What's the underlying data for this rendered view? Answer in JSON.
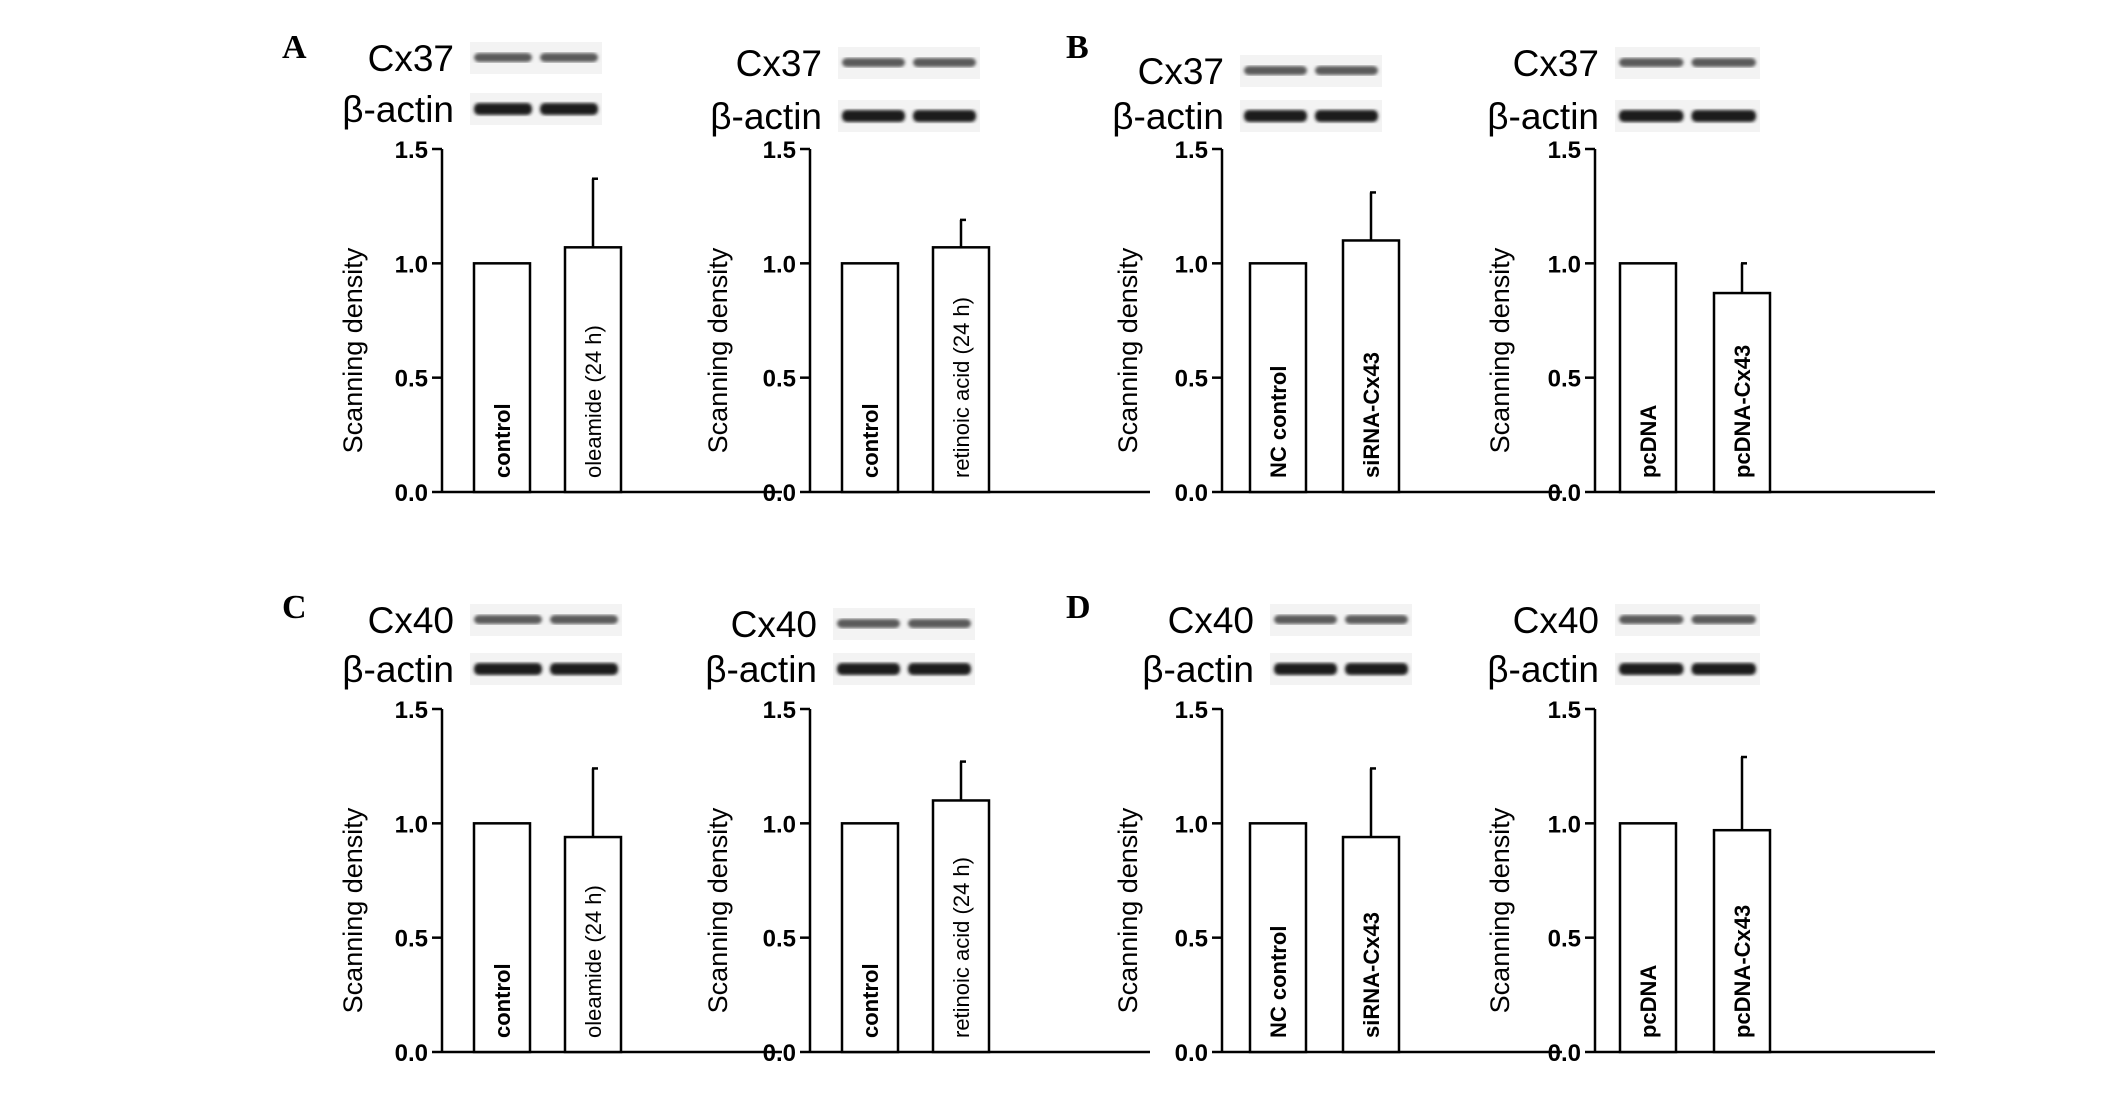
{
  "figure": {
    "panel_letters": [
      "A",
      "B",
      "C",
      "D"
    ]
  },
  "chart_data": [
    {
      "type": "bar",
      "panel": "A",
      "protein": "Cx37",
      "loading_control": "β-actin",
      "categories": [
        "control",
        "oleamide (24 h)"
      ],
      "values": [
        1.0,
        1.07
      ],
      "errors": [
        0,
        0.3
      ],
      "ylabel": "Scanning density",
      "ylim": [
        0,
        1.5
      ],
      "yticks": [
        "0.0",
        "0.5",
        "1.0",
        "1.5"
      ],
      "bold_bar_labels": [
        true,
        false
      ]
    },
    {
      "type": "bar",
      "panel": "A",
      "protein": "Cx37",
      "loading_control": "β-actin",
      "categories": [
        "control",
        "retinoic acid (24 h)"
      ],
      "values": [
        1.0,
        1.07
      ],
      "errors": [
        0,
        0.12
      ],
      "ylabel": "Scanning density",
      "ylim": [
        0,
        1.5
      ],
      "yticks": [
        "0.0",
        "0.5",
        "1.0",
        "1.5"
      ],
      "bold_bar_labels": [
        true,
        false
      ]
    },
    {
      "type": "bar",
      "panel": "B",
      "protein": "Cx37",
      "loading_control": "β-actin",
      "categories": [
        "NC control",
        "siRNA-Cx43"
      ],
      "values": [
        1.0,
        1.1
      ],
      "errors": [
        0,
        0.21
      ],
      "ylabel": "Scanning density",
      "ylim": [
        0,
        1.5
      ],
      "yticks": [
        "0.0",
        "0.5",
        "1.0",
        "1.5"
      ],
      "bold_bar_labels": [
        true,
        true
      ]
    },
    {
      "type": "bar",
      "panel": "B",
      "protein": "Cx37",
      "loading_control": "β-actin",
      "categories": [
        "pcDNA",
        "pcDNA-Cx43"
      ],
      "values": [
        1.0,
        0.87
      ],
      "errors": [
        0,
        0.13
      ],
      "ylabel": "Scanning density",
      "ylim": [
        0,
        1.5
      ],
      "yticks": [
        "0.0",
        "0.5",
        "1.0",
        "1.5"
      ],
      "bold_bar_labels": [
        true,
        true
      ]
    },
    {
      "type": "bar",
      "panel": "C",
      "protein": "Cx40",
      "loading_control": "β-actin",
      "categories": [
        "control",
        "oleamide (24 h)"
      ],
      "values": [
        1.0,
        0.94
      ],
      "errors": [
        0,
        0.3
      ],
      "ylabel": "Scanning density",
      "ylim": [
        0,
        1.5
      ],
      "yticks": [
        "0.0",
        "0.5",
        "1.0",
        "1.5"
      ],
      "bold_bar_labels": [
        true,
        false
      ]
    },
    {
      "type": "bar",
      "panel": "C",
      "protein": "Cx40",
      "loading_control": "β-actin",
      "categories": [
        "control",
        "retinoic acid (24 h)"
      ],
      "values": [
        1.0,
        1.1
      ],
      "errors": [
        0,
        0.17
      ],
      "ylabel": "Scanning density",
      "ylim": [
        0,
        1.5
      ],
      "yticks": [
        "0.0",
        "0.5",
        "1.0",
        "1.5"
      ],
      "bold_bar_labels": [
        true,
        false
      ]
    },
    {
      "type": "bar",
      "panel": "D",
      "protein": "Cx40",
      "loading_control": "β-actin",
      "categories": [
        "NC control",
        "siRNA-Cx43"
      ],
      "values": [
        1.0,
        0.94
      ],
      "errors": [
        0,
        0.3
      ],
      "ylabel": "Scanning density",
      "ylim": [
        0,
        1.5
      ],
      "yticks": [
        "0.0",
        "0.5",
        "1.0",
        "1.5"
      ],
      "bold_bar_labels": [
        true,
        true
      ]
    },
    {
      "type": "bar",
      "panel": "D",
      "protein": "Cx40",
      "loading_control": "β-actin",
      "categories": [
        "pcDNA",
        "pcDNA-Cx43"
      ],
      "values": [
        1.0,
        0.97
      ],
      "errors": [
        0,
        0.32
      ],
      "ylabel": "Scanning density",
      "ylim": [
        0,
        1.5
      ],
      "yticks": [
        "0.0",
        "0.5",
        "1.0",
        "1.5"
      ],
      "bold_bar_labels": [
        true,
        true
      ]
    }
  ]
}
